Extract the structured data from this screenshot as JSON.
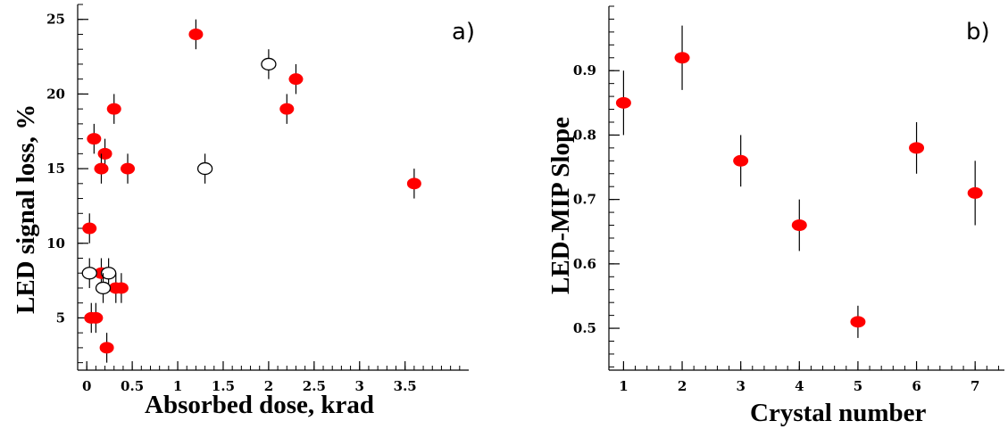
{
  "chart_data": [
    {
      "type": "scatter",
      "panel_label": "a)",
      "xlabel": "Absorbed dose, krad",
      "ylabel": "LED signal loss, %",
      "xlim": [
        -0.1,
        4.2
      ],
      "ylim": [
        1.5,
        26
      ],
      "xticks": [
        0,
        0.5,
        1,
        1.5,
        2,
        2.5,
        3,
        3.5
      ],
      "xtick_labels": [
        "0",
        "0.5",
        "1",
        "1.5",
        "2",
        "2.5",
        "3",
        "3.5"
      ],
      "yticks": [
        5,
        10,
        15,
        20,
        25
      ],
      "ytick_labels": [
        "5",
        "10",
        "15",
        "20",
        "25"
      ],
      "grid": false,
      "series": [
        {
          "marker": "filled",
          "color": "#ff0000",
          "points": [
            {
              "x": 1.2,
              "y": 24,
              "err": 1
            },
            {
              "x": 2.3,
              "y": 21,
              "err": 1
            },
            {
              "x": 2.2,
              "y": 19,
              "err": 1
            },
            {
              "x": 0.3,
              "y": 19,
              "err": 1
            },
            {
              "x": 0.08,
              "y": 17,
              "err": 1
            },
            {
              "x": 0.2,
              "y": 16,
              "err": 1
            },
            {
              "x": 0.16,
              "y": 15,
              "err": 1
            },
            {
              "x": 0.45,
              "y": 15,
              "err": 1
            },
            {
              "x": 3.6,
              "y": 14,
              "err": 1
            },
            {
              "x": 0.03,
              "y": 11,
              "err": 1
            },
            {
              "x": 0.16,
              "y": 8,
              "err": 1
            },
            {
              "x": 0.32,
              "y": 7,
              "err": 1
            },
            {
              "x": 0.38,
              "y": 7,
              "err": 1
            },
            {
              "x": 0.05,
              "y": 5,
              "err": 1
            },
            {
              "x": 0.1,
              "y": 5,
              "err": 1
            },
            {
              "x": 0.22,
              "y": 3,
              "err": 1
            }
          ]
        },
        {
          "marker": "open",
          "color": "#000000",
          "points": [
            {
              "x": 2.0,
              "y": 22,
              "err": 1
            },
            {
              "x": 1.3,
              "y": 15,
              "err": 1
            },
            {
              "x": 0.03,
              "y": 8,
              "err": 1
            },
            {
              "x": 0.24,
              "y": 8,
              "err": 1
            },
            {
              "x": 0.18,
              "y": 7,
              "err": 1
            }
          ]
        }
      ]
    },
    {
      "type": "scatter",
      "panel_label": "b)",
      "xlabel": "Crystal number",
      "ylabel": "LED-MIP Slope",
      "xlim": [
        0.75,
        7.5
      ],
      "ylim": [
        0.435,
        1.0
      ],
      "xticks": [
        1,
        2,
        3,
        4,
        5,
        6,
        7
      ],
      "xtick_labels": [
        "1",
        "2",
        "3",
        "4",
        "5",
        "6",
        "7"
      ],
      "yticks": [
        0.5,
        0.6,
        0.7,
        0.8,
        0.9
      ],
      "ytick_labels": [
        "0.5",
        "0.6",
        "0.7",
        "0.8",
        "0.9"
      ],
      "grid": false,
      "series": [
        {
          "marker": "filled",
          "color": "#ff0000",
          "points": [
            {
              "x": 1,
              "y": 0.85,
              "err": 0.05
            },
            {
              "x": 2,
              "y": 0.92,
              "err": 0.05
            },
            {
              "x": 3,
              "y": 0.76,
              "err": 0.04
            },
            {
              "x": 4,
              "y": 0.66,
              "err": 0.04
            },
            {
              "x": 5,
              "y": 0.51,
              "err": 0.025
            },
            {
              "x": 6,
              "y": 0.78,
              "err": 0.04
            },
            {
              "x": 7,
              "y": 0.71,
              "err": 0.05
            }
          ]
        }
      ]
    }
  ]
}
